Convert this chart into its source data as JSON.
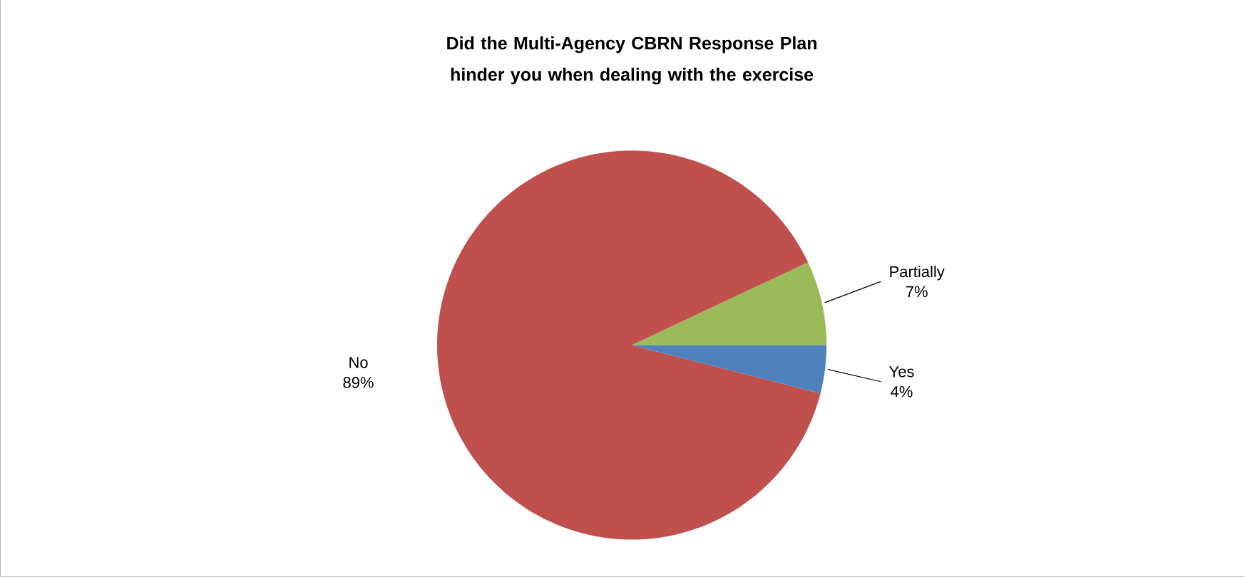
{
  "chart_data": {
    "type": "pie",
    "title": "Did the Multi-Agency CBRN Response Plan hinder you when dealing with the exercise",
    "categories": [
      "Partially",
      "No",
      "Yes"
    ],
    "values": [
      7,
      89,
      4
    ],
    "colors": [
      "#9bbb59",
      "#c0504d",
      "#4f81bd"
    ],
    "value_labels": [
      "7%",
      "89%",
      "4%"
    ]
  }
}
